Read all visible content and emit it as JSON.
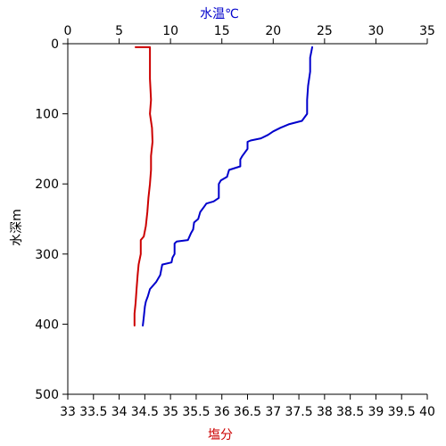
{
  "chart_data": {
    "type": "line",
    "top_axis": {
      "label": "水温℃",
      "label_color": "#0000cc",
      "range": [
        0,
        35
      ],
      "ticks": [
        0,
        5,
        10,
        15,
        20,
        25,
        30,
        35
      ]
    },
    "bottom_axis": {
      "label": "塩分",
      "label_color": "#cc0000",
      "range": [
        33,
        40
      ],
      "ticks": [
        "33",
        "33.5",
        "34",
        "34.5",
        "35",
        "35.5",
        "36",
        "36.5",
        "37",
        "37.5",
        "38",
        "38.5",
        "39",
        "39.5",
        "40"
      ]
    },
    "y_axis": {
      "label": "水深m",
      "range": [
        0,
        500
      ],
      "inverted": true,
      "ticks": [
        0,
        100,
        200,
        300,
        400,
        500
      ]
    },
    "grid": false,
    "series": [
      {
        "axis": "top",
        "color": "#0000cc",
        "points": [
          [
            23.8,
            5
          ],
          [
            23.6,
            20
          ],
          [
            23.6,
            40
          ],
          [
            23.4,
            60
          ],
          [
            23.3,
            80
          ],
          [
            23.3,
            100
          ],
          [
            22.8,
            110
          ],
          [
            21.5,
            115
          ],
          [
            20.7,
            120
          ],
          [
            20.0,
            125
          ],
          [
            19.5,
            130
          ],
          [
            18.8,
            135
          ],
          [
            17.8,
            138
          ],
          [
            17.5,
            140
          ],
          [
            17.5,
            150
          ],
          [
            17.0,
            160
          ],
          [
            16.8,
            165
          ],
          [
            16.8,
            175
          ],
          [
            15.7,
            180
          ],
          [
            15.5,
            190
          ],
          [
            14.9,
            195
          ],
          [
            14.7,
            200
          ],
          [
            14.7,
            220
          ],
          [
            14.2,
            225
          ],
          [
            13.5,
            228
          ],
          [
            13.3,
            232
          ],
          [
            12.9,
            240
          ],
          [
            12.7,
            250
          ],
          [
            12.3,
            255
          ],
          [
            12.2,
            265
          ],
          [
            12.0,
            270
          ],
          [
            11.7,
            280
          ],
          [
            10.6,
            282
          ],
          [
            10.4,
            285
          ],
          [
            10.4,
            300
          ],
          [
            10.2,
            305
          ],
          [
            10.1,
            312
          ],
          [
            9.2,
            315
          ],
          [
            9.0,
            330
          ],
          [
            8.6,
            340
          ],
          [
            8.0,
            350
          ],
          [
            7.8,
            360
          ],
          [
            7.6,
            368
          ],
          [
            7.5,
            375
          ],
          [
            7.4,
            390
          ],
          [
            7.3,
            402
          ]
        ]
      },
      {
        "axis": "bottom",
        "color": "#cc0000",
        "points": [
          [
            34.32,
            5
          ],
          [
            34.6,
            5
          ],
          [
            34.6,
            20
          ],
          [
            34.6,
            50
          ],
          [
            34.62,
            80
          ],
          [
            34.6,
            100
          ],
          [
            34.64,
            120
          ],
          [
            34.65,
            140
          ],
          [
            34.62,
            160
          ],
          [
            34.62,
            180
          ],
          [
            34.6,
            200
          ],
          [
            34.57,
            220
          ],
          [
            34.55,
            240
          ],
          [
            34.52,
            260
          ],
          [
            34.48,
            275
          ],
          [
            34.42,
            280
          ],
          [
            34.42,
            300
          ],
          [
            34.38,
            315
          ],
          [
            34.36,
            330
          ],
          [
            34.34,
            350
          ],
          [
            34.32,
            370
          ],
          [
            34.3,
            385
          ],
          [
            34.3,
            402
          ]
        ]
      }
    ]
  }
}
